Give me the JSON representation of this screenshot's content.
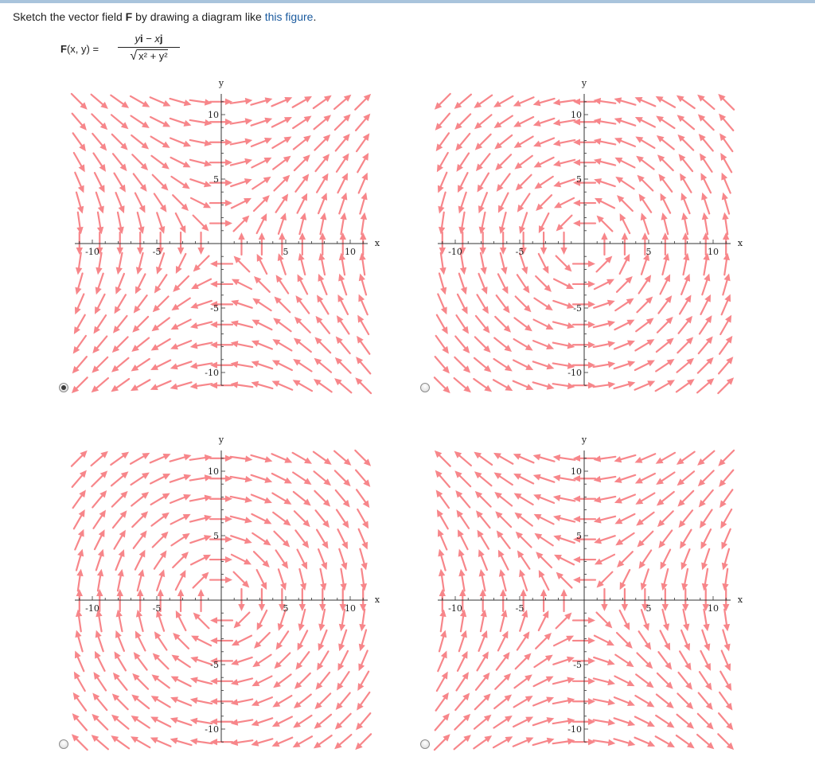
{
  "question": {
    "text_before": "Sketch the vector field ",
    "field_symbol": "F",
    "text_middle": " by drawing a diagram like ",
    "link_text": "this figure",
    "text_after": "."
  },
  "formula": {
    "lhs_symbol": "F",
    "lhs_args": "(x, y) =",
    "numerator_y": "y",
    "numerator_i": "i",
    "numerator_minus": " − ",
    "numerator_x": "x",
    "numerator_j": "j",
    "radical": "√",
    "denominator": "x² + y²"
  },
  "colors": {
    "arrow": "#f7868a",
    "axis": "#333333"
  },
  "options": [
    {
      "id": "a",
      "selected": true,
      "field": "diagonal-flow",
      "u": "y",
      "v": "x"
    },
    {
      "id": "b",
      "selected": false,
      "field": "counterclockwise-rotation",
      "u": "-y",
      "v": "x"
    },
    {
      "id": "c",
      "selected": false,
      "field": "clockwise-rotation",
      "u": "y",
      "v": "-x"
    },
    {
      "id": "d",
      "selected": false,
      "field": "anti-diagonal-flow",
      "u": "-y",
      "v": "-x"
    }
  ],
  "axes": {
    "x_label": "x",
    "y_label": "y",
    "ticks": [
      "-10",
      "-5",
      "5",
      "10"
    ],
    "tick_values": [
      -10,
      -5,
      5,
      10
    ],
    "range": [
      -11,
      11
    ]
  }
}
